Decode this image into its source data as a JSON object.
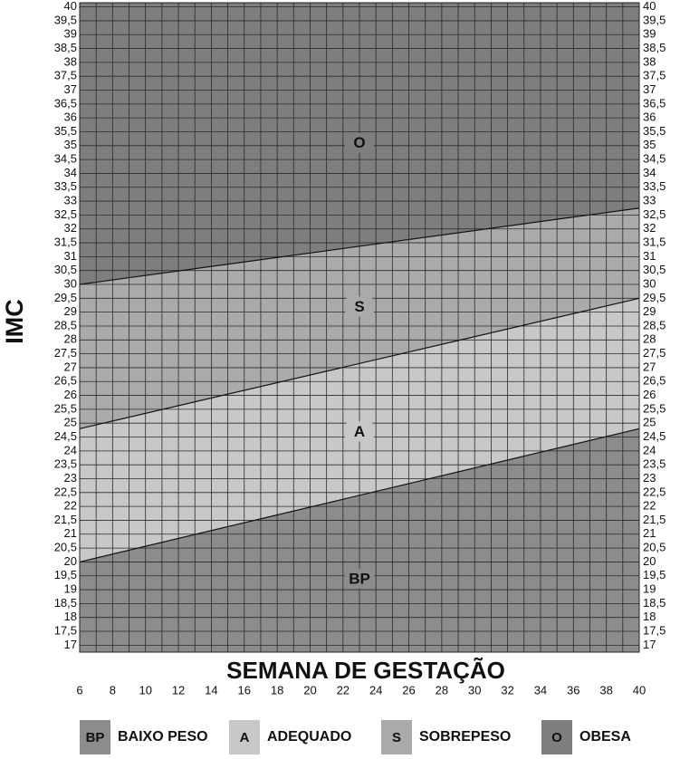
{
  "chart_data": {
    "type": "band",
    "x_label": "SEMANA DE GESTAÇÃO",
    "y_label": "IMC",
    "xlim": [
      6,
      40
    ],
    "xticks": [
      6,
      8,
      10,
      12,
      14,
      16,
      18,
      20,
      22,
      24,
      26,
      28,
      30,
      32,
      34,
      36,
      38,
      40
    ],
    "xgrid": [
      7,
      9,
      11,
      13,
      15,
      17,
      19,
      21,
      23,
      25,
      27,
      29,
      31,
      33,
      35,
      37,
      39
    ],
    "ylim": [
      16.75,
      40.15
    ],
    "yticks": [
      17,
      {
        "value": 17.5,
        "label": "17,5"
      },
      18,
      {
        "value": 18.5,
        "label": "18,5"
      },
      19,
      {
        "value": 19.5,
        "label": "19,5"
      },
      20,
      {
        "value": 20.5,
        "label": "20,5"
      },
      21,
      {
        "value": 21.5,
        "label": "21,5"
      },
      22,
      {
        "value": 22.5,
        "label": "22,5"
      },
      23,
      {
        "value": 23.5,
        "label": "23,5"
      },
      24,
      {
        "value": 24.5,
        "label": "24,5"
      },
      25,
      {
        "value": 25.5,
        "label": "25,5"
      },
      26,
      {
        "value": 26.5,
        "label": "26,5"
      },
      27,
      {
        "value": 27.5,
        "label": "27,5"
      },
      28,
      {
        "value": 28.5,
        "label": "28,5"
      },
      29,
      {
        "value": 29.5,
        "label": "29,5"
      },
      30,
      {
        "value": 30.5,
        "label": "30,5"
      },
      31,
      {
        "value": 31.5,
        "label": "31,5"
      },
      32,
      {
        "value": 32.5,
        "label": "32,5"
      },
      33,
      {
        "value": 33.5,
        "label": "33,5"
      },
      34,
      {
        "value": 34.5,
        "label": "34,5"
      },
      35,
      {
        "value": 35.5,
        "label": "35,5"
      },
      36,
      {
        "value": 36.5,
        "label": "36,5"
      },
      37,
      {
        "value": 37.5,
        "label": "37,5"
      },
      38,
      {
        "value": 38.5,
        "label": "38,5"
      },
      39,
      {
        "value": 39.5,
        "label": "39,5"
      },
      40
    ],
    "grid": true,
    "boundaries": [
      {
        "x": [
          6,
          40
        ],
        "values": [
          20,
          24.8
        ]
      },
      {
        "x": [
          6,
          40
        ],
        "values": [
          24.8,
          29.5
        ]
      },
      {
        "x": [
          6,
          40
        ],
        "values": [
          30,
          32.75
        ]
      }
    ],
    "regions": [
      {
        "abbr": "BP",
        "name": "BAIXO PESO",
        "color": "#8c8c8c",
        "label_x": 23,
        "label_y": 19.4
      },
      {
        "abbr": "A",
        "name": "ADEQUADO",
        "color": "#c8c8c8",
        "label_x": 23,
        "label_y": 24.7
      },
      {
        "abbr": "S",
        "name": "SOBREPESO",
        "color": "#aaaaaa",
        "label_x": 23,
        "label_y": 29.2
      },
      {
        "abbr": "O",
        "name": "OBESA",
        "color": "#7e7e7e",
        "label_x": 23,
        "label_y": 35.1
      }
    ]
  }
}
